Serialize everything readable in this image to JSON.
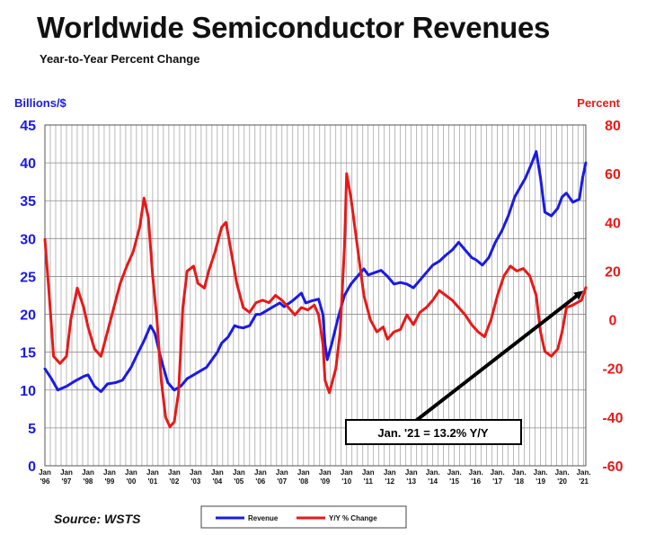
{
  "title": "Worldwide Semiconductor Revenues",
  "subtitle": "Year-to-Year Percent Change",
  "source": "Source: WSTS",
  "colors": {
    "revenue": "#1a1ae6",
    "change": "#e81919",
    "grid": "#8c8c8c",
    "arrow": "#000000"
  },
  "chart_data": {
    "type": "line",
    "left_axis_label": "Billions/$",
    "right_axis_label": "Percent",
    "left_ylim": [
      0,
      45
    ],
    "right_ylim": [
      -60,
      80
    ],
    "left_ticks": [
      "0",
      "5",
      "10",
      "15",
      "20",
      "25",
      "30",
      "35",
      "40",
      "45"
    ],
    "right_ticks": [
      "-60",
      "-40",
      "-20",
      "0",
      "20",
      "40",
      "60",
      "80"
    ],
    "x_tick_labels": [
      {
        "top": "Jan",
        "bottom": "'96"
      },
      {
        "top": "Jan",
        "bottom": "'97"
      },
      {
        "top": "Jan",
        "bottom": "'98"
      },
      {
        "top": "Jan",
        "bottom": "'99"
      },
      {
        "top": "Jan",
        "bottom": "'00"
      },
      {
        "top": "Jan",
        "bottom": "'01"
      },
      {
        "top": "Jan",
        "bottom": "'02"
      },
      {
        "top": "Jan",
        "bottom": "'03"
      },
      {
        "top": "Jan",
        "bottom": "'04"
      },
      {
        "top": "Jan",
        "bottom": "'05"
      },
      {
        "top": "Jan",
        "bottom": "'06"
      },
      {
        "top": "Jan",
        "bottom": "'07"
      },
      {
        "top": "Jan",
        "bottom": "'08"
      },
      {
        "top": "Jan",
        "bottom": "'09"
      },
      {
        "top": "Jan",
        "bottom": "'10"
      },
      {
        "top": "Jan",
        "bottom": "'11"
      },
      {
        "top": "Jan",
        "bottom": "'12"
      },
      {
        "top": "Jan",
        "bottom": "'13"
      },
      {
        "top": "Jan.",
        "bottom": "'14"
      },
      {
        "top": "Jan.",
        "bottom": "'15"
      },
      {
        "top": "Jan.",
        "bottom": "'16"
      },
      {
        "top": "Jan.",
        "bottom": "'17"
      },
      {
        "top": "Jan.",
        "bottom": "'18"
      },
      {
        "top": "Jan.",
        "bottom": "'19"
      },
      {
        "top": "Jan.",
        "bottom": "'20"
      },
      {
        "top": "Jan.",
        "bottom": "'21"
      }
    ],
    "x_range": [
      1996.0,
      2021.1
    ],
    "grid": true,
    "legend_position": "bottom",
    "series": [
      {
        "name": "Revenue",
        "axis": "left",
        "points": [
          [
            1996.0,
            12.8
          ],
          [
            1996.3,
            11.5
          ],
          [
            1996.6,
            10.0
          ],
          [
            1997.0,
            10.5
          ],
          [
            1997.4,
            11.2
          ],
          [
            1997.8,
            11.8
          ],
          [
            1998.0,
            12.0
          ],
          [
            1998.3,
            10.5
          ],
          [
            1998.6,
            9.8
          ],
          [
            1998.9,
            10.8
          ],
          [
            1999.3,
            11.0
          ],
          [
            1999.6,
            11.3
          ],
          [
            2000.0,
            13.0
          ],
          [
            2000.3,
            14.8
          ],
          [
            2000.6,
            16.5
          ],
          [
            2000.9,
            18.5
          ],
          [
            2001.1,
            17.5
          ],
          [
            2001.4,
            14.0
          ],
          [
            2001.7,
            11.0
          ],
          [
            2002.0,
            10.0
          ],
          [
            2002.3,
            10.5
          ],
          [
            2002.6,
            11.5
          ],
          [
            2002.9,
            12.0
          ],
          [
            2003.2,
            12.5
          ],
          [
            2003.5,
            13.0
          ],
          [
            2003.8,
            14.2
          ],
          [
            2004.0,
            15.0
          ],
          [
            2004.2,
            16.2
          ],
          [
            2004.5,
            17.0
          ],
          [
            2004.8,
            18.5
          ],
          [
            2005.0,
            18.3
          ],
          [
            2005.2,
            18.2
          ],
          [
            2005.5,
            18.5
          ],
          [
            2005.8,
            20.0
          ],
          [
            2006.0,
            20.0
          ],
          [
            2006.3,
            20.5
          ],
          [
            2006.6,
            21.0
          ],
          [
            2006.9,
            21.5
          ],
          [
            2007.1,
            21.0
          ],
          [
            2007.5,
            21.8
          ],
          [
            2007.9,
            22.8
          ],
          [
            2008.1,
            21.5
          ],
          [
            2008.4,
            21.8
          ],
          [
            2008.7,
            22.0
          ],
          [
            2008.9,
            20.0
          ],
          [
            2009.0,
            16.0
          ],
          [
            2009.1,
            14.0
          ],
          [
            2009.3,
            16.0
          ],
          [
            2009.6,
            19.5
          ],
          [
            2009.9,
            22.5
          ],
          [
            2010.2,
            24.0
          ],
          [
            2010.5,
            25.0
          ],
          [
            2010.8,
            26.0
          ],
          [
            2011.0,
            25.2
          ],
          [
            2011.3,
            25.5
          ],
          [
            2011.6,
            25.8
          ],
          [
            2011.9,
            25.0
          ],
          [
            2012.2,
            24.0
          ],
          [
            2012.5,
            24.2
          ],
          [
            2012.8,
            24.0
          ],
          [
            2013.1,
            23.5
          ],
          [
            2013.4,
            24.5
          ],
          [
            2013.7,
            25.5
          ],
          [
            2014.0,
            26.5
          ],
          [
            2014.3,
            27.0
          ],
          [
            2014.6,
            27.8
          ],
          [
            2014.9,
            28.5
          ],
          [
            2015.2,
            29.5
          ],
          [
            2015.5,
            28.5
          ],
          [
            2015.8,
            27.5
          ],
          [
            2016.0,
            27.2
          ],
          [
            2016.3,
            26.5
          ],
          [
            2016.6,
            27.5
          ],
          [
            2016.9,
            29.5
          ],
          [
            2017.2,
            31.0
          ],
          [
            2017.5,
            33.0
          ],
          [
            2017.8,
            35.5
          ],
          [
            2018.0,
            36.5
          ],
          [
            2018.3,
            38.0
          ],
          [
            2018.6,
            40.0
          ],
          [
            2018.8,
            41.5
          ],
          [
            2019.0,
            38.0
          ],
          [
            2019.2,
            33.5
          ],
          [
            2019.5,
            33.0
          ],
          [
            2019.8,
            34.0
          ],
          [
            2020.0,
            35.5
          ],
          [
            2020.2,
            36.0
          ],
          [
            2020.5,
            34.8
          ],
          [
            2020.8,
            35.2
          ],
          [
            2020.95,
            38.0
          ],
          [
            2021.1,
            40.0
          ]
        ]
      },
      {
        "name": "Y/Y % Change",
        "axis": "right",
        "points": [
          [
            1996.0,
            33
          ],
          [
            1996.2,
            10
          ],
          [
            1996.4,
            -15
          ],
          [
            1996.7,
            -18
          ],
          [
            1997.0,
            -15
          ],
          [
            1997.2,
            0
          ],
          [
            1997.5,
            13
          ],
          [
            1997.8,
            5
          ],
          [
            1998.0,
            -3
          ],
          [
            1998.3,
            -12
          ],
          [
            1998.6,
            -15
          ],
          [
            1998.9,
            -5
          ],
          [
            1999.2,
            5
          ],
          [
            1999.5,
            15
          ],
          [
            1999.8,
            22
          ],
          [
            2000.1,
            28
          ],
          [
            2000.4,
            38
          ],
          [
            2000.6,
            50
          ],
          [
            2000.8,
            42
          ],
          [
            2001.0,
            18
          ],
          [
            2001.2,
            0
          ],
          [
            2001.4,
            -25
          ],
          [
            2001.6,
            -40
          ],
          [
            2001.8,
            -44
          ],
          [
            2002.0,
            -42
          ],
          [
            2002.2,
            -30
          ],
          [
            2002.4,
            5
          ],
          [
            2002.6,
            20
          ],
          [
            2002.9,
            22
          ],
          [
            2003.1,
            15
          ],
          [
            2003.4,
            13
          ],
          [
            2003.6,
            20
          ],
          [
            2003.9,
            28
          ],
          [
            2004.2,
            38
          ],
          [
            2004.4,
            40
          ],
          [
            2004.6,
            30
          ],
          [
            2004.9,
            15
          ],
          [
            2005.2,
            5
          ],
          [
            2005.5,
            3
          ],
          [
            2005.8,
            7
          ],
          [
            2006.1,
            8
          ],
          [
            2006.4,
            7
          ],
          [
            2006.7,
            10
          ],
          [
            2007.0,
            8
          ],
          [
            2007.3,
            5
          ],
          [
            2007.6,
            2
          ],
          [
            2007.9,
            5
          ],
          [
            2008.2,
            4
          ],
          [
            2008.5,
            6
          ],
          [
            2008.7,
            2
          ],
          [
            2008.9,
            -10
          ],
          [
            2009.0,
            -25
          ],
          [
            2009.2,
            -30
          ],
          [
            2009.5,
            -20
          ],
          [
            2009.7,
            -5
          ],
          [
            2009.9,
            30
          ],
          [
            2010.0,
            60
          ],
          [
            2010.2,
            50
          ],
          [
            2010.5,
            30
          ],
          [
            2010.8,
            10
          ],
          [
            2011.1,
            0
          ],
          [
            2011.4,
            -5
          ],
          [
            2011.7,
            -3
          ],
          [
            2011.9,
            -8
          ],
          [
            2012.2,
            -5
          ],
          [
            2012.5,
            -4
          ],
          [
            2012.8,
            2
          ],
          [
            2013.1,
            -2
          ],
          [
            2013.4,
            3
          ],
          [
            2013.7,
            5
          ],
          [
            2014.0,
            8
          ],
          [
            2014.3,
            12
          ],
          [
            2014.6,
            10
          ],
          [
            2014.9,
            8
          ],
          [
            2015.2,
            5
          ],
          [
            2015.5,
            2
          ],
          [
            2015.8,
            -2
          ],
          [
            2016.1,
            -5
          ],
          [
            2016.4,
            -7
          ],
          [
            2016.7,
            0
          ],
          [
            2017.0,
            10
          ],
          [
            2017.3,
            18
          ],
          [
            2017.6,
            22
          ],
          [
            2017.9,
            20
          ],
          [
            2018.2,
            21
          ],
          [
            2018.5,
            18
          ],
          [
            2018.8,
            10
          ],
          [
            2019.0,
            -5
          ],
          [
            2019.2,
            -13
          ],
          [
            2019.5,
            -15
          ],
          [
            2019.8,
            -12
          ],
          [
            2020.0,
            -5
          ],
          [
            2020.2,
            5
          ],
          [
            2020.5,
            6
          ],
          [
            2020.7,
            7
          ],
          [
            2020.9,
            8
          ],
          [
            2021.1,
            13.2
          ]
        ]
      }
    ],
    "annotation": {
      "text": "Jan. '21 = 13.2% Y/Y",
      "target": [
        2021.1,
        13.2
      ]
    }
  },
  "legend": [
    {
      "label": "Revenue",
      "color_key": "revenue"
    },
    {
      "label": "Y/Y % Change",
      "color_key": "change"
    }
  ]
}
